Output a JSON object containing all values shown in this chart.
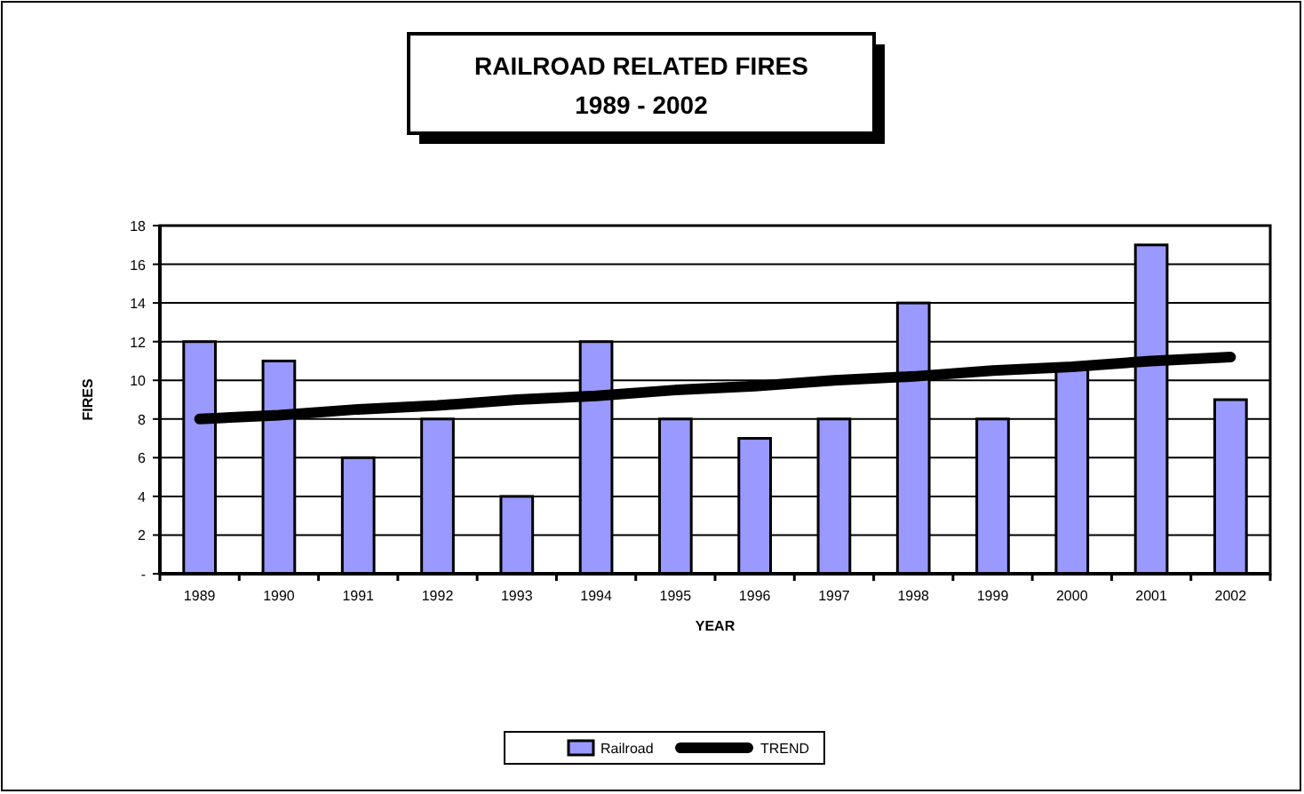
{
  "chart_data": {
    "type": "bar",
    "title": "RAILROAD RELATED FIRES",
    "subtitle": "1989 - 2002",
    "xlabel": "YEAR",
    "ylabel": "FIRES",
    "categories": [
      "1989",
      "1990",
      "1991",
      "1992",
      "1993",
      "1994",
      "1995",
      "1996",
      "1997",
      "1998",
      "1999",
      "2000",
      "2001",
      "2002"
    ],
    "series": [
      {
        "name": "Railroad",
        "color": "#9999ff",
        "values": [
          12,
          11,
          6,
          8,
          4,
          12,
          8,
          7,
          8,
          14,
          8,
          10.6,
          17,
          9
        ]
      },
      {
        "name": "TREND",
        "type": "line",
        "color": "#000000",
        "values": [
          8.0,
          8.2,
          8.5,
          8.7,
          9.0,
          9.2,
          9.5,
          9.7,
          10.0,
          10.2,
          10.5,
          10.7,
          11.0,
          11.2
        ]
      }
    ],
    "ylim": [
      0,
      18
    ],
    "yticks": [
      {
        "value": 0,
        "label": "-"
      },
      2,
      4,
      6,
      8,
      10,
      12,
      14,
      16,
      18
    ],
    "grid": "y",
    "legend": "bottom",
    "marker": "none"
  }
}
